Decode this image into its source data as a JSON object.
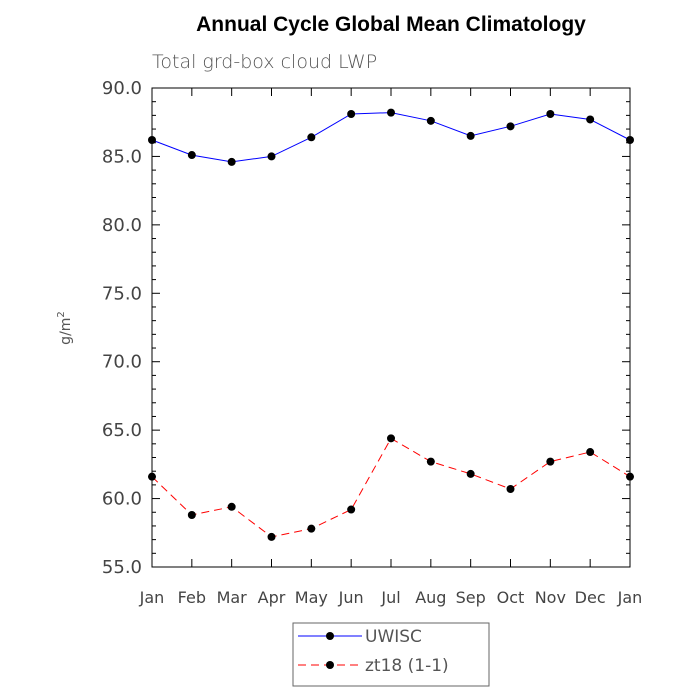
{
  "chart_data": {
    "type": "line",
    "title": "Annual Cycle Global Mean Climatology",
    "subtitle": "Total grd-box cloud LWP",
    "xlabel": "",
    "ylabel": "g/m",
    "ylabel_superscript": "2",
    "categories": [
      "Jan",
      "Feb",
      "Mar",
      "Apr",
      "May",
      "Jun",
      "Jul",
      "Aug",
      "Sep",
      "Oct",
      "Nov",
      "Dec",
      "Jan"
    ],
    "ylim": [
      55.0,
      90.0
    ],
    "yticks": [
      55.0,
      60.0,
      65.0,
      70.0,
      75.0,
      80.0,
      85.0,
      90.0
    ],
    "ytick_labels": [
      "55.0",
      "60.0",
      "65.0",
      "70.0",
      "75.0",
      "80.0",
      "85.0",
      "90.0"
    ],
    "series": [
      {
        "name": "UWISC",
        "color": "#0000ff",
        "dash": "solid",
        "values": [
          86.2,
          85.1,
          84.6,
          85.0,
          86.4,
          88.1,
          88.2,
          87.6,
          86.5,
          87.2,
          88.1,
          87.7,
          86.2
        ]
      },
      {
        "name": "zt18 (1-1)",
        "color": "#ff0000",
        "dash": "dashed",
        "values": [
          61.6,
          58.8,
          59.4,
          57.2,
          57.8,
          59.2,
          64.4,
          62.7,
          61.8,
          60.7,
          62.7,
          63.4,
          61.6
        ]
      }
    ],
    "legend": {
      "placement": "bottom-center",
      "entries": [
        "UWISC",
        "zt18 (1-1)"
      ]
    },
    "grid": false,
    "marker_color": "#000000"
  }
}
